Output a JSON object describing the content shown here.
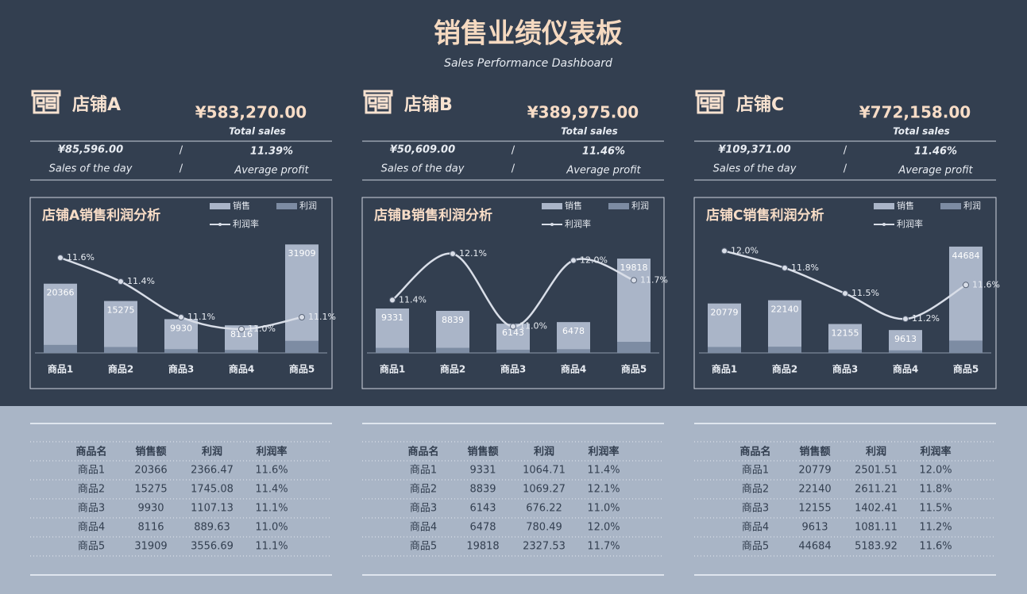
{
  "header": {
    "title": "销售业绩仪表板",
    "subtitle": "Sales Performance Dashboard"
  },
  "stores": [
    {
      "name": "店铺A",
      "total_sales": "¥583,270.00",
      "total_sales_label": "Total sales",
      "day_sales": "¥85,596.00",
      "separator": "/",
      "average_profit": "11.39%",
      "day_sales_label": "Sales of the day",
      "average_profit_label": "Average profit"
    },
    {
      "name": "店铺B",
      "total_sales": "¥389,975.00",
      "total_sales_label": "Total sales",
      "day_sales": "¥50,609.00",
      "separator": "/",
      "average_profit": "11.46%",
      "day_sales_label": "Sales of the day",
      "average_profit_label": "Average profit"
    },
    {
      "name": "店铺C",
      "total_sales": "¥772,158.00",
      "total_sales_label": "Total sales",
      "day_sales": "¥109,371.00",
      "separator": "/",
      "average_profit": "11.46%",
      "day_sales_label": "Sales of the day",
      "average_profit_label": "Average profit"
    }
  ],
  "table_header": [
    "商品名",
    "销售额",
    "利润",
    "利润率"
  ],
  "chart_data": [
    {
      "type": "combo",
      "title": "店铺A销售利润分析",
      "categories": [
        "商品1",
        "商品2",
        "商品3",
        "商品4",
        "商品5"
      ],
      "series": [
        {
          "name": "销售",
          "type": "bar",
          "color": "#aab5c8",
          "values": [
            20366,
            15275,
            9930,
            8116,
            31909
          ]
        },
        {
          "name": "利润",
          "type": "bar",
          "color": "#7d8ca3",
          "values": [
            2366.47,
            1745.08,
            1107.13,
            889.63,
            3556.69
          ]
        },
        {
          "name": "利润率",
          "type": "line",
          "axis": "y2",
          "color": "#d9dee8",
          "values": [
            11.6,
            11.4,
            11.1,
            11.0,
            11.1
          ],
          "value_labels": [
            "11.6%",
            "11.4%",
            "11.1%",
            "11.0%",
            "11.1%"
          ]
        }
      ],
      "ylim": [
        0,
        35000
      ],
      "y2lim": [
        10.8,
        11.8
      ]
    },
    {
      "type": "combo",
      "title": "店铺B销售利润分析",
      "categories": [
        "商品1",
        "商品2",
        "商品3",
        "商品4",
        "商品5"
      ],
      "series": [
        {
          "name": "销售",
          "type": "bar",
          "color": "#aab5c8",
          "values": [
            9331,
            8839,
            6143,
            6478,
            19818
          ]
        },
        {
          "name": "利润",
          "type": "bar",
          "color": "#7d8ca3",
          "values": [
            1064.71,
            1069.27,
            676.22,
            780.49,
            2327.53
          ]
        },
        {
          "name": "利润率",
          "type": "line",
          "axis": "y2",
          "color": "#d9dee8",
          "values": [
            11.4,
            12.1,
            11.0,
            12.0,
            11.7
          ],
          "value_labels": [
            "11.4%",
            "12.1%",
            "11.0%",
            "12.0%",
            "11.7%"
          ]
        }
      ],
      "ylim": [
        0,
        25000
      ],
      "y2lim": [
        10.6,
        12.4
      ]
    },
    {
      "type": "combo",
      "title": "店铺C销售利润分析",
      "categories": [
        "商品1",
        "商品2",
        "商品3",
        "商品4",
        "商品5"
      ],
      "series": [
        {
          "name": "销售",
          "type": "bar",
          "color": "#aab5c8",
          "values": [
            20779,
            22140,
            12155,
            9613,
            44684
          ]
        },
        {
          "name": "利润",
          "type": "bar",
          "color": "#7d8ca3",
          "values": [
            2501.51,
            2611.21,
            1402.41,
            1081.11,
            5183.92
          ]
        },
        {
          "name": "利润率",
          "type": "line",
          "axis": "y2",
          "color": "#d9dee8",
          "values": [
            12.0,
            11.8,
            11.5,
            11.2,
            11.6
          ],
          "value_labels": [
            "12.0%",
            "11.8%",
            "11.5%",
            "11.2%",
            "11.6%"
          ]
        }
      ],
      "ylim": [
        0,
        50000
      ],
      "y2lim": [
        10.8,
        12.2
      ]
    }
  ]
}
